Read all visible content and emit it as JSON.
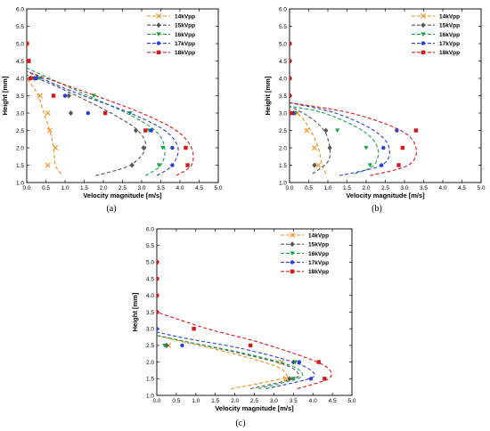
{
  "chart_data": [
    {
      "type": "scatter",
      "panel_label": "(a)",
      "xlabel": "Velocity magnitude [m/s]",
      "ylabel": "Height [mm]",
      "xlim": [
        0,
        5
      ],
      "ylim": [
        1,
        6
      ],
      "xticks": [
        "0.0",
        "0.5",
        "1.0",
        "1.5",
        "2.0",
        "2.5",
        "3.0",
        "3.5",
        "4.0",
        "4.5",
        "5.0"
      ],
      "yticks": [
        "1.0",
        "1.5",
        "2.0",
        "2.5",
        "3.0",
        "3.5",
        "4.0",
        "4.5",
        "5.0",
        "5.5",
        "6.0"
      ],
      "legend_position": "top-right",
      "series": [
        {
          "name": "14kVpp",
          "color": "#f28e1c",
          "marker": "x",
          "fit": [
            [
              0.9,
              1.25
            ],
            [
              0.75,
              1.5
            ],
            [
              0.7,
              2.0
            ],
            [
              0.6,
              2.5
            ],
            [
              0.45,
              3.0
            ],
            [
              0.3,
              3.5
            ],
            [
              0.1,
              3.85
            ],
            [
              0,
              4.0
            ]
          ],
          "points": [
            [
              0.55,
              1.5
            ],
            [
              0.75,
              2.0
            ],
            [
              0.6,
              2.5
            ],
            [
              0.55,
              3.0
            ],
            [
              0.35,
              3.5
            ],
            [
              0.05,
              4.5
            ],
            [
              0,
              5.0
            ]
          ]
        },
        {
          "name": "15kVpp",
          "color": "#555555",
          "marker": "diamond",
          "fit": [
            [
              1.8,
              1.2
            ],
            [
              2.7,
              1.5
            ],
            [
              3.1,
              2.0
            ],
            [
              2.9,
              2.5
            ],
            [
              2.2,
              3.0
            ],
            [
              1.3,
              3.5
            ],
            [
              0.5,
              3.9
            ],
            [
              0,
              4.1
            ]
          ],
          "points": [
            [
              2.75,
              1.5
            ],
            [
              3.05,
              2.0
            ],
            [
              2.85,
              2.5
            ],
            [
              1.15,
              3.0
            ],
            [
              1.1,
              3.5
            ],
            [
              0.2,
              4.0
            ],
            [
              0.05,
              4.5
            ]
          ]
        },
        {
          "name": "16kVpp",
          "color": "#1aa34a",
          "marker": "triangle-down",
          "fit": [
            [
              3.1,
              1.2
            ],
            [
              3.5,
              1.5
            ],
            [
              3.6,
              2.0
            ],
            [
              3.35,
              2.5
            ],
            [
              2.6,
              3.0
            ],
            [
              1.6,
              3.5
            ],
            [
              0.8,
              3.9
            ],
            [
              0,
              4.3
            ]
          ],
          "points": [
            [
              3.45,
              1.5
            ],
            [
              3.55,
              2.0
            ],
            [
              3.2,
              2.5
            ],
            [
              2.7,
              3.0
            ],
            [
              1.75,
              3.5
            ],
            [
              0.35,
              4.0
            ],
            [
              0.05,
              4.5
            ]
          ]
        },
        {
          "name": "17kVpp",
          "color": "#2b3fd6",
          "marker": "circle",
          "fit": [
            [
              3.4,
              1.2
            ],
            [
              3.8,
              1.5
            ],
            [
              3.95,
              2.0
            ],
            [
              3.6,
              2.5
            ],
            [
              2.7,
              3.0
            ],
            [
              1.6,
              3.45
            ],
            [
              0.8,
              3.8
            ],
            [
              0,
              4.2
            ]
          ],
          "points": [
            [
              3.8,
              1.5
            ],
            [
              3.8,
              2.0
            ],
            [
              3.25,
              2.5
            ],
            [
              1.6,
              3.0
            ],
            [
              1.0,
              3.5
            ],
            [
              0.25,
              4.0
            ],
            [
              0.05,
              4.5
            ]
          ]
        },
        {
          "name": "18kVpp",
          "color": "#d01c1c",
          "marker": "square",
          "fit": [
            [
              3.9,
              1.2
            ],
            [
              4.3,
              1.5
            ],
            [
              4.3,
              2.0
            ],
            [
              3.9,
              2.5
            ],
            [
              3.0,
              3.0
            ],
            [
              1.8,
              3.5
            ],
            [
              0.9,
              3.85
            ],
            [
              0,
              4.2
            ]
          ],
          "points": [
            [
              4.2,
              1.5
            ],
            [
              4.15,
              2.0
            ],
            [
              3.1,
              2.5
            ],
            [
              2.05,
              3.0
            ],
            [
              0.7,
              3.5
            ],
            [
              0.1,
              4.0
            ],
            [
              0.05,
              4.5
            ],
            [
              0,
              5.0
            ]
          ]
        }
      ]
    },
    {
      "type": "scatter",
      "panel_label": "(b)",
      "xlabel": "Velocity magnitude [m/s]",
      "ylabel": "Height [mm]",
      "xlim": [
        0,
        5
      ],
      "ylim": [
        1,
        6
      ],
      "xticks": [
        "0.0",
        "0.5",
        "1.0",
        "1.5",
        "2.0",
        "2.5",
        "3.0",
        "3.5",
        "4.0",
        "4.5",
        "5.0"
      ],
      "yticks": [
        "1.0",
        "1.5",
        "2.0",
        "2.5",
        "3.0",
        "3.5",
        "4.0",
        "4.5",
        "5.0",
        "5.5",
        "6.0"
      ],
      "legend_position": "top-right",
      "series": [
        {
          "name": "14kVpp",
          "color": "#f28e1c",
          "marker": "x",
          "fit": [
            [
              0.95,
              1.25
            ],
            [
              0.85,
              1.5
            ],
            [
              0.75,
              2.0
            ],
            [
              0.55,
              2.5
            ],
            [
              0.3,
              2.9
            ],
            [
              0,
              3.1
            ]
          ],
          "points": [
            [
              0.75,
              1.5
            ],
            [
              0.65,
              2.0
            ],
            [
              0.45,
              2.5
            ],
            [
              0.2,
              3.0
            ]
          ]
        },
        {
          "name": "15kVpp",
          "color": "#555555",
          "marker": "diamond",
          "fit": [
            [
              0.6,
              1.25
            ],
            [
              1.0,
              1.6
            ],
            [
              1.05,
              2.0
            ],
            [
              0.9,
              2.5
            ],
            [
              0.5,
              2.9
            ],
            [
              0,
              3.2
            ]
          ],
          "points": [
            [
              0.65,
              1.5
            ],
            [
              1.05,
              2.0
            ],
            [
              0.95,
              2.5
            ],
            [
              0.1,
              3.0
            ]
          ]
        },
        {
          "name": "16kVpp",
          "color": "#1aa34a",
          "marker": "triangle-down",
          "fit": [
            [
              1.7,
              1.25
            ],
            [
              2.2,
              1.5
            ],
            [
              2.3,
              2.0
            ],
            [
              1.9,
              2.5
            ],
            [
              0.9,
              3.0
            ],
            [
              0,
              3.2
            ]
          ],
          "points": [
            [
              2.1,
              1.5
            ],
            [
              2.0,
              2.0
            ],
            [
              1.25,
              2.5
            ],
            [
              0.15,
              3.0
            ]
          ]
        },
        {
          "name": "17kVpp",
          "color": "#2b3fd6",
          "marker": "circle",
          "fit": [
            [
              1.3,
              1.2
            ],
            [
              2.4,
              1.5
            ],
            [
              2.6,
              2.0
            ],
            [
              2.2,
              2.5
            ],
            [
              1.2,
              3.0
            ],
            [
              0,
              3.3
            ]
          ],
          "points": [
            [
              2.4,
              1.5
            ],
            [
              2.45,
              2.0
            ],
            [
              2.8,
              2.5
            ],
            [
              0.1,
              3.0
            ]
          ]
        },
        {
          "name": "18kVpp",
          "color": "#d01c1c",
          "marker": "square",
          "fit": [
            [
              2.1,
              1.2
            ],
            [
              3.1,
              1.5
            ],
            [
              3.3,
              2.0
            ],
            [
              2.9,
              2.5
            ],
            [
              1.6,
              3.0
            ],
            [
              0,
              3.3
            ]
          ],
          "points": [
            [
              2.85,
              1.5
            ],
            [
              2.95,
              2.0
            ],
            [
              3.3,
              2.5
            ],
            [
              0.05,
              3.0
            ],
            [
              0,
              3.5
            ],
            [
              0,
              4.0
            ],
            [
              0,
              4.5
            ],
            [
              0,
              5.0
            ]
          ]
        }
      ]
    },
    {
      "type": "scatter",
      "panel_label": "(c)",
      "xlabel": "Velocity magnitude [m/s]",
      "ylabel": "Height [mm]",
      "xlim": [
        0,
        5
      ],
      "ylim": [
        1,
        6
      ],
      "xticks": [
        "0.0",
        "0.5",
        "1.0",
        "1.5",
        "2.0",
        "2.5",
        "3.0",
        "3.5",
        "4.0",
        "4.5",
        "5.0"
      ],
      "yticks": [
        "1.0",
        "1.5",
        "2.0",
        "2.5",
        "3.0",
        "3.5",
        "4.0",
        "4.5",
        "5.0",
        "5.5",
        "6.0"
      ],
      "legend_position": "top-right",
      "series": [
        {
          "name": "14kVpp",
          "color": "#f28e1c",
          "marker": "x",
          "fit": [
            [
              1.9,
              1.2
            ],
            [
              3.2,
              1.5
            ],
            [
              3.3,
              1.65
            ],
            [
              3.0,
              1.9
            ],
            [
              1.8,
              2.3
            ],
            [
              0.7,
              2.6
            ],
            [
              0,
              2.8
            ]
          ],
          "points": [
            [
              3.3,
              1.5
            ],
            [
              3.2,
              2.0
            ],
            [
              0.3,
              2.5
            ]
          ]
        },
        {
          "name": "15kVpp",
          "color": "#555555",
          "marker": "diamond",
          "fit": [
            [
              2.4,
              1.2
            ],
            [
              3.5,
              1.5
            ],
            [
              3.6,
              1.7
            ],
            [
              3.2,
              1.95
            ],
            [
              2.0,
              2.3
            ],
            [
              0.8,
              2.6
            ],
            [
              0,
              2.8
            ]
          ],
          "points": [
            [
              3.4,
              1.5
            ],
            [
              3.5,
              2.0
            ],
            [
              0.25,
              2.5
            ]
          ]
        },
        {
          "name": "16kVpp",
          "color": "#1aa34a",
          "marker": "triangle-down",
          "fit": [
            [
              2.6,
              1.2
            ],
            [
              3.6,
              1.5
            ],
            [
              3.7,
              1.7
            ],
            [
              3.3,
              1.95
            ],
            [
              2.1,
              2.3
            ],
            [
              0.8,
              2.6
            ],
            [
              0,
              2.8
            ]
          ],
          "points": [
            [
              3.5,
              1.5
            ],
            [
              3.55,
              2.0
            ],
            [
              0.2,
              2.5
            ]
          ]
        },
        {
          "name": "17kVpp",
          "color": "#2b3fd6",
          "marker": "circle",
          "fit": [
            [
              2.8,
              1.2
            ],
            [
              3.9,
              1.5
            ],
            [
              4.0,
              1.7
            ],
            [
              3.5,
              2.0
            ],
            [
              2.2,
              2.4
            ],
            [
              0.8,
              2.7
            ],
            [
              0,
              2.9
            ]
          ],
          "points": [
            [
              3.95,
              1.5
            ],
            [
              3.65,
              2.0
            ],
            [
              0.65,
              2.5
            ],
            [
              0,
              3.0
            ]
          ]
        },
        {
          "name": "18kVpp",
          "color": "#d01c1c",
          "marker": "square",
          "fit": [
            [
              3.6,
              1.2
            ],
            [
              4.4,
              1.5
            ],
            [
              4.4,
              1.8
            ],
            [
              3.9,
              2.1
            ],
            [
              2.6,
              2.6
            ],
            [
              1.3,
              3.0
            ],
            [
              0,
              3.5
            ]
          ],
          "points": [
            [
              4.3,
              1.5
            ],
            [
              4.15,
              2.0
            ],
            [
              2.4,
              2.5
            ],
            [
              0.95,
              3.0
            ],
            [
              0,
              3.5
            ],
            [
              0,
              4.0
            ],
            [
              0,
              4.5
            ],
            [
              0,
              5.0
            ]
          ]
        }
      ]
    }
  ]
}
